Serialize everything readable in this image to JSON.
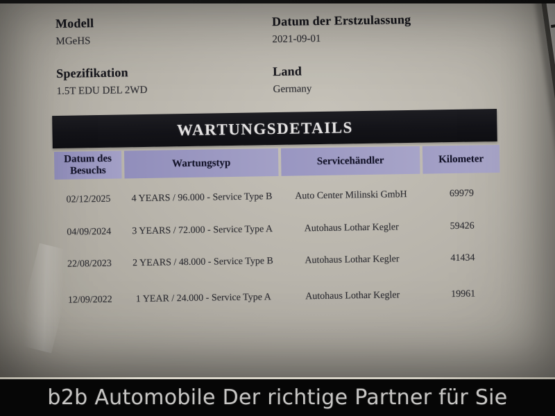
{
  "document": {
    "fields": [
      {
        "label": "Modell",
        "value": "MGeHS"
      },
      {
        "label": "Datum der Erstzulassung",
        "value": "2021-09-01"
      },
      {
        "label": "Spezifikation",
        "value": "1.5T EDU DEL 2WD"
      },
      {
        "label": "Land",
        "value": "Germany"
      }
    ],
    "table": {
      "title": "WARTUNGSDETAILS",
      "columns": [
        "Datum des Besuchs",
        "Wartungstyp",
        "Servicehändler",
        "Kilometer"
      ],
      "rows": [
        [
          "02/12/2025",
          "4 YEARS / 96.000 - Service Type B",
          "Auto Center Milinski GmbH",
          "69979"
        ],
        [
          "04/09/2024",
          "3 YEARS / 72.000 - Service Type A",
          "Autohaus Lothar Kegler",
          "59426"
        ],
        [
          "22/08/2023",
          "2 YEARS / 48.000 - Service Type B",
          "Autohaus Lothar Kegler",
          "41434"
        ],
        [
          "12/09/2022",
          "1 YEAR / 24.000 - Service Type A",
          "Autohaus Lothar Kegler",
          "19961"
        ]
      ]
    }
  },
  "banner": {
    "text": "b2b Automobile Der richtige Partner für Sie"
  },
  "colors": {
    "paper": "#b8b4ab",
    "title_bar_bg": "#131318",
    "title_bar_text": "#e4e2e2",
    "table_header_bg": "#9c99c2",
    "table_header_text": "#14142a",
    "body_text": "#2c2c31",
    "banner_bg": "#060606",
    "banner_text": "#c7c6c4"
  }
}
